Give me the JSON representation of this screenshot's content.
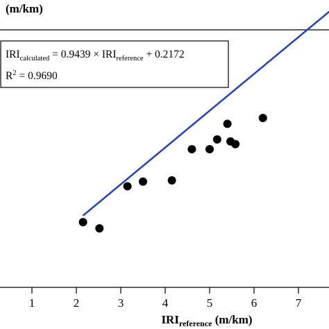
{
  "colors": {
    "fit_line": "#1f3fc8",
    "points": "#000000",
    "axis": "#000000",
    "background": "#ffffff"
  },
  "chart_data": {
    "type": "scatter",
    "ylabel_unit_visible": "(m/km)",
    "xlabel": {
      "main": "IRI",
      "sub": "reference",
      "unit": " (m/km)"
    },
    "x_ticks": [
      "1",
      "2",
      "3",
      "4",
      "5",
      "6",
      "7"
    ],
    "xlim": [
      0.0,
      7.7
    ],
    "ylim": [
      0.0,
      7.7
    ],
    "points": [
      {
        "x": 2.15,
        "y": 2.08
      },
      {
        "x": 2.52,
        "y": 1.92
      },
      {
        "x": 3.15,
        "y": 3.0
      },
      {
        "x": 3.5,
        "y": 3.12
      },
      {
        "x": 4.15,
        "y": 3.15
      },
      {
        "x": 4.6,
        "y": 3.95
      },
      {
        "x": 5.0,
        "y": 3.95
      },
      {
        "x": 5.17,
        "y": 4.2
      },
      {
        "x": 5.4,
        "y": 4.6
      },
      {
        "x": 5.47,
        "y": 4.15
      },
      {
        "x": 5.58,
        "y": 4.08
      },
      {
        "x": 6.2,
        "y": 4.75
      }
    ],
    "fit": {
      "slope": 0.9439,
      "intercept": 0.2172,
      "r2": 0.969,
      "x_range": [
        2.15,
        7.7
      ]
    },
    "legend_placement": "top-left",
    "grid": false,
    "annotation": {
      "line1_main": "IRI",
      "line1_sub": "calculated",
      "line1_mid": " = 0.9439 × IRI",
      "line1_sub2": "reference",
      "line1_end": " + 0.2172",
      "line2_main": "R",
      "line2_sup": "2",
      "line2_end": " = 0.9690"
    }
  }
}
